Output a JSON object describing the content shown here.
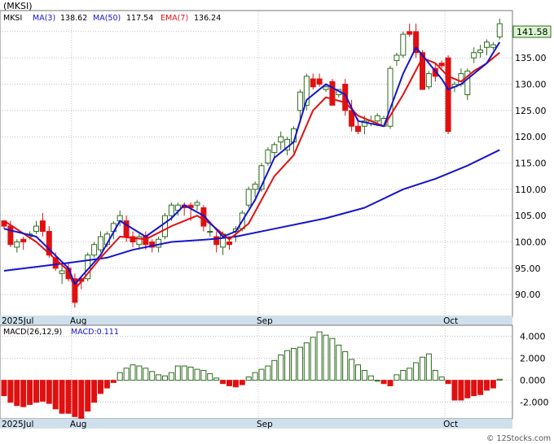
{
  "title": "(MKSI)",
  "legend": {
    "ticker": "MKSI",
    "ma3": "MA(3)",
    "ma3_value": "138.62",
    "ma50": "MA(50)",
    "ma50_value": "117.54",
    "ema7": "EMA(7)",
    "ema7_value": "136.24"
  },
  "last_price_label": "141.58",
  "macd_label": "MACD(26,12,9)",
  "macd_value_label": "MACD:0.111",
  "footer": "© 12Stocks.com",
  "colors": {
    "up": "#2e6b1e",
    "down": "#e01010",
    "ma": "#1515cc",
    "ema": "#e01010",
    "macd_pos": "#2e6b1e",
    "macd_neg": "#e01010",
    "axis_band": "#cfe0ec",
    "grid": "#999999"
  },
  "chart_data": [
    {
      "type": "candlestick",
      "ylim": [
        86,
        144
      ],
      "y_ticks": [
        "90.00",
        "95.00",
        "100.00",
        "105.00",
        "110.00",
        "115.00",
        "120.00",
        "125.00",
        "130.00",
        "135.00",
        "140.00"
      ],
      "x_ticks": [
        {
          "label": "2025Jul",
          "index": 0
        },
        {
          "label": "Aug",
          "index": 11
        },
        {
          "label": "Sep",
          "index": 40
        },
        {
          "label": "Oct",
          "index": 69
        }
      ],
      "ohlc": [
        [
          104,
          104,
          102.5,
          103
        ],
        [
          103,
          104,
          99,
          99.5
        ],
        [
          99,
          100.5,
          98,
          100
        ],
        [
          100.5,
          101,
          98.5,
          100
        ],
        [
          101,
          102,
          100.5,
          101.5
        ],
        [
          102,
          104,
          101.5,
          103
        ],
        [
          104,
          105.5,
          101,
          102
        ],
        [
          102,
          103,
          97,
          97.5
        ],
        [
          97,
          98,
          94.5,
          95
        ],
        [
          94,
          96,
          92,
          94.5
        ],
        [
          95,
          96,
          92.5,
          93
        ],
        [
          93,
          94,
          87.5,
          88.5
        ],
        [
          93,
          93.5,
          91,
          92.5
        ],
        [
          93,
          98,
          92.5,
          97.5
        ],
        [
          97.5,
          100,
          97,
          99.5
        ],
        [
          98.5,
          102,
          98,
          101
        ],
        [
          99.5,
          102,
          99,
          101.5
        ],
        [
          102,
          104,
          100.5,
          103.5
        ],
        [
          104,
          106,
          103,
          105
        ],
        [
          104,
          105,
          100,
          101
        ],
        [
          101,
          102,
          99,
          100
        ],
        [
          99.5,
          101.5,
          98.5,
          101
        ],
        [
          101,
          102,
          98.5,
          99.5
        ],
        [
          100,
          100.5,
          98,
          99
        ],
        [
          99,
          101,
          98,
          100.5
        ],
        [
          101,
          105.5,
          100.5,
          105
        ],
        [
          105,
          107.5,
          104,
          107
        ],
        [
          106,
          107.5,
          105,
          107
        ],
        [
          107,
          107.5,
          105,
          106.5
        ],
        [
          107,
          107.5,
          104,
          106.5
        ],
        [
          107,
          108,
          106,
          107.5
        ],
        [
          106.5,
          107,
          102,
          103
        ],
        [
          102,
          103.5,
          101,
          102
        ],
        [
          101,
          102,
          98,
          99.5
        ],
        [
          99,
          102,
          97.5,
          101.5
        ],
        [
          100,
          101,
          98.5,
          99.5
        ],
        [
          102,
          103,
          100,
          102.5
        ],
        [
          102.5,
          106,
          102,
          105.5
        ],
        [
          107,
          110.5,
          106.5,
          110
        ],
        [
          110,
          111.5,
          108.5,
          111
        ],
        [
          110,
          115,
          109.5,
          114.5
        ],
        [
          115,
          118,
          114.5,
          117.5
        ],
        [
          117,
          119,
          116,
          118.5
        ],
        [
          119,
          121,
          117.5,
          120
        ],
        [
          117.5,
          120,
          116.5,
          119.5
        ],
        [
          119,
          122,
          117,
          121.5
        ],
        [
          125,
          129,
          123,
          128.5
        ],
        [
          126,
          132,
          125,
          131.5
        ],
        [
          131,
          132,
          129,
          129.5
        ],
        [
          131,
          132,
          129.5,
          130
        ],
        [
          129,
          130,
          128.5,
          129.5
        ],
        [
          130.5,
          131,
          126,
          126
        ],
        [
          128,
          129,
          127.5,
          129
        ],
        [
          130,
          131,
          124,
          125
        ],
        [
          125,
          127,
          121,
          122
        ],
        [
          122,
          123.5,
          120.5,
          121
        ],
        [
          122,
          124,
          120.5,
          123
        ],
        [
          122.5,
          124,
          122,
          123
        ],
        [
          123,
          124.5,
          122,
          124
        ],
        [
          122,
          124,
          122,
          123.5
        ],
        [
          122,
          133.5,
          121.5,
          133
        ],
        [
          134.5,
          136,
          133.5,
          135.5
        ],
        [
          135.5,
          140,
          135,
          139.5
        ],
        [
          140,
          141.5,
          139,
          139.5
        ],
        [
          140,
          141.5,
          135,
          136
        ],
        [
          136,
          136.5,
          129,
          129
        ],
        [
          129.5,
          132.5,
          129,
          132
        ],
        [
          133,
          134,
          130.5,
          131.5
        ],
        [
          134,
          134.5,
          133,
          133.5
        ],
        [
          135,
          135.5,
          120.5,
          121
        ],
        [
          129.5,
          130.5,
          128.5,
          130
        ],
        [
          130,
          133,
          129.5,
          132
        ],
        [
          128,
          133,
          127,
          132.5
        ],
        [
          135,
          137,
          134,
          136
        ],
        [
          136,
          137.5,
          135,
          136.5
        ],
        [
          137,
          138.5,
          135.5,
          138
        ],
        [
          137,
          138,
          136.5,
          137.5
        ],
        [
          139,
          142.5,
          138.5,
          141.5
        ]
      ],
      "ma3": [
        [
          0,
          102.5
        ],
        [
          5,
          101
        ],
        [
          10,
          95
        ],
        [
          11,
          92
        ],
        [
          15,
          97.5
        ],
        [
          18,
          104
        ],
        [
          22,
          101
        ],
        [
          26,
          104.5
        ],
        [
          28,
          107
        ],
        [
          31,
          105
        ],
        [
          34,
          101
        ],
        [
          36,
          102
        ],
        [
          39,
          108
        ],
        [
          42,
          116
        ],
        [
          45,
          119
        ],
        [
          47,
          127
        ],
        [
          50,
          130
        ],
        [
          53,
          128
        ],
        [
          55,
          123
        ],
        [
          59,
          122
        ],
        [
          62,
          132
        ],
        [
          64,
          137
        ],
        [
          66,
          134
        ],
        [
          68,
          131
        ],
        [
          69,
          129
        ],
        [
          71,
          130
        ],
        [
          73,
          132
        ],
        [
          75,
          134
        ],
        [
          77,
          138
        ]
      ],
      "ma50": [
        [
          0,
          94.5
        ],
        [
          10,
          96
        ],
        [
          16,
          97
        ],
        [
          20,
          98.5
        ],
        [
          26,
          100
        ],
        [
          32,
          100.5
        ],
        [
          36,
          101
        ],
        [
          42,
          102.5
        ],
        [
          50,
          104.5
        ],
        [
          56,
          106.5
        ],
        [
          62,
          110
        ],
        [
          67,
          112
        ],
        [
          72,
          114.5
        ],
        [
          77,
          117.5
        ]
      ],
      "ema7": [
        [
          0,
          104
        ],
        [
          5,
          100
        ],
        [
          10,
          94.5
        ],
        [
          11,
          91
        ],
        [
          15,
          97
        ],
        [
          18,
          101
        ],
        [
          22,
          100.5
        ],
        [
          26,
          103
        ],
        [
          30,
          105
        ],
        [
          32,
          103.5
        ],
        [
          35,
          100.5
        ],
        [
          38,
          103.5
        ],
        [
          42,
          112.5
        ],
        [
          45,
          116.5
        ],
        [
          48,
          125
        ],
        [
          50,
          127.5
        ],
        [
          53,
          126.5
        ],
        [
          55,
          124
        ],
        [
          59,
          122
        ],
        [
          62,
          128
        ],
        [
          65,
          135
        ],
        [
          67,
          134
        ],
        [
          69,
          131.5
        ],
        [
          71,
          130.5
        ],
        [
          73,
          132.5
        ],
        [
          75,
          134
        ],
        [
          77,
          136
        ]
      ]
    },
    {
      "type": "bar",
      "name": "MACD(26,12,9)",
      "ylim": [
        -3.5,
        5
      ],
      "y_ticks": [
        "4.000",
        "2.000",
        "0.000",
        "-2.000"
      ],
      "values": [
        -1.4,
        -2.0,
        -2.3,
        -2.4,
        -2.2,
        -2.0,
        -1.9,
        -2.1,
        -2.6,
        -3.0,
        -3.0,
        -3.3,
        -3.5,
        -2.8,
        -2.0,
        -1.2,
        -0.7,
        -0.2,
        0.7,
        1.1,
        1.4,
        1.3,
        1.1,
        0.8,
        0.5,
        0.4,
        0.7,
        1.3,
        1.3,
        1.2,
        1.0,
        0.9,
        0.6,
        0.2,
        -0.3,
        -0.5,
        -0.6,
        -0.4,
        0.3,
        0.7,
        1.0,
        1.3,
        1.8,
        2.3,
        2.7,
        2.9,
        3.0,
        3.4,
        3.9,
        4.4,
        4.1,
        3.8,
        3.2,
        2.6,
        1.9,
        1.4,
        0.9,
        0.4,
        0.0,
        -0.3,
        -0.5,
        0.5,
        0.9,
        1.1,
        1.6,
        2.1,
        2.4,
        0.9,
        0.3,
        -0.3,
        -1.8,
        -1.8,
        -1.6,
        -1.4,
        -1.3,
        -0.9,
        -0.7,
        0.1
      ]
    }
  ]
}
